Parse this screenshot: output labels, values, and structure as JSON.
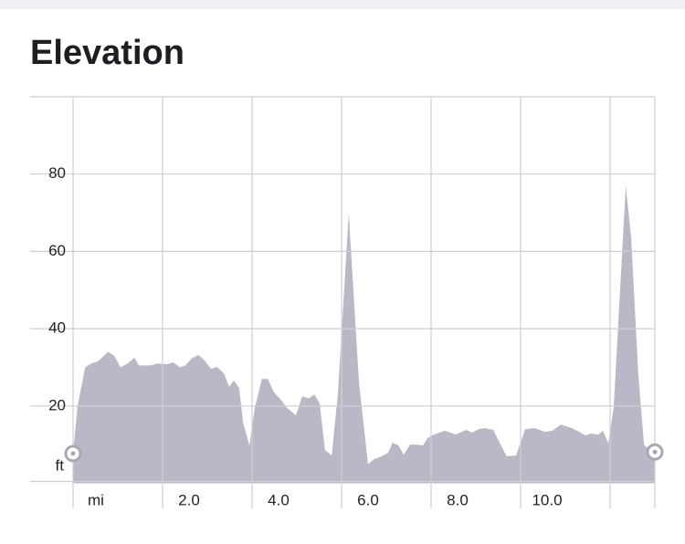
{
  "chart_data": {
    "type": "area",
    "title": "Elevation",
    "x_unit": "mi",
    "y_unit": "ft",
    "color": "#b9b8c6",
    "x": [
      0,
      0.1,
      0.27,
      0.41,
      0.55,
      0.78,
      0.92,
      1.06,
      1.22,
      1.37,
      1.47,
      1.73,
      1.88,
      2.1,
      2.24,
      2.39,
      2.51,
      2.65,
      2.8,
      2.94,
      3.08,
      3.22,
      3.37,
      3.49,
      3.59,
      3.71,
      3.8,
      3.94,
      4.06,
      4.22,
      4.35,
      4.49,
      4.63,
      4.78,
      4.98,
      5.12,
      5.27,
      5.39,
      5.51,
      5.63,
      5.78,
      5.92,
      6.16,
      6.39,
      6.59,
      6.73,
      6.9,
      7.04,
      7.14,
      7.27,
      7.39,
      7.53,
      7.67,
      7.82,
      7.92,
      8.06,
      8.31,
      8.55,
      8.78,
      8.92,
      9.06,
      9.2,
      9.39,
      9.53,
      9.69,
      9.9,
      10.1,
      10.31,
      10.55,
      10.71,
      10.9,
      11.14,
      11.31,
      11.45,
      11.57,
      11.73,
      11.84,
      11.96,
      12.08,
      12.35,
      12.47,
      12.63,
      12.76,
      13.0
    ],
    "values": [
      7.7,
      20,
      30,
      31,
      31.5,
      34,
      33,
      30,
      31,
      32.5,
      30.5,
      30.5,
      31,
      30.8,
      31.3,
      30,
      30.5,
      32.3,
      33.2,
      31.8,
      29.6,
      30.1,
      28.4,
      25,
      26.6,
      24.7,
      15.7,
      9.8,
      19.5,
      27,
      27,
      23.5,
      21.8,
      19.5,
      17.6,
      22.5,
      22,
      23,
      20.7,
      8.6,
      7.2,
      23.5,
      69.8,
      25.9,
      5,
      6.3,
      7,
      7.9,
      10.5,
      9.8,
      7.4,
      10,
      10,
      9.8,
      11.7,
      12.6,
      13.6,
      12.6,
      13.8,
      13.1,
      14,
      14.3,
      13.8,
      10.5,
      7,
      7.2,
      14,
      14.3,
      13.3,
      13.6,
      15.2,
      14.3,
      13.3,
      12.4,
      12.9,
      12.6,
      13.6,
      10.3,
      19.7,
      76.9,
      63.6,
      28.2,
      9.8,
      8.1
    ],
    "xlim": [
      0,
      13
    ],
    "ylim": [
      0,
      100
    ],
    "xticks": [
      {
        "value": 0,
        "label": null
      },
      {
        "value": 2,
        "label": "2.0"
      },
      {
        "value": 4,
        "label": "4.0"
      },
      {
        "value": 6,
        "label": "6.0"
      },
      {
        "value": 8,
        "label": "8.0"
      },
      {
        "value": 10,
        "label": "10.0"
      },
      {
        "value": 12,
        "label": null
      }
    ],
    "yticks": [
      20,
      40,
      60,
      80
    ],
    "grid": true
  }
}
